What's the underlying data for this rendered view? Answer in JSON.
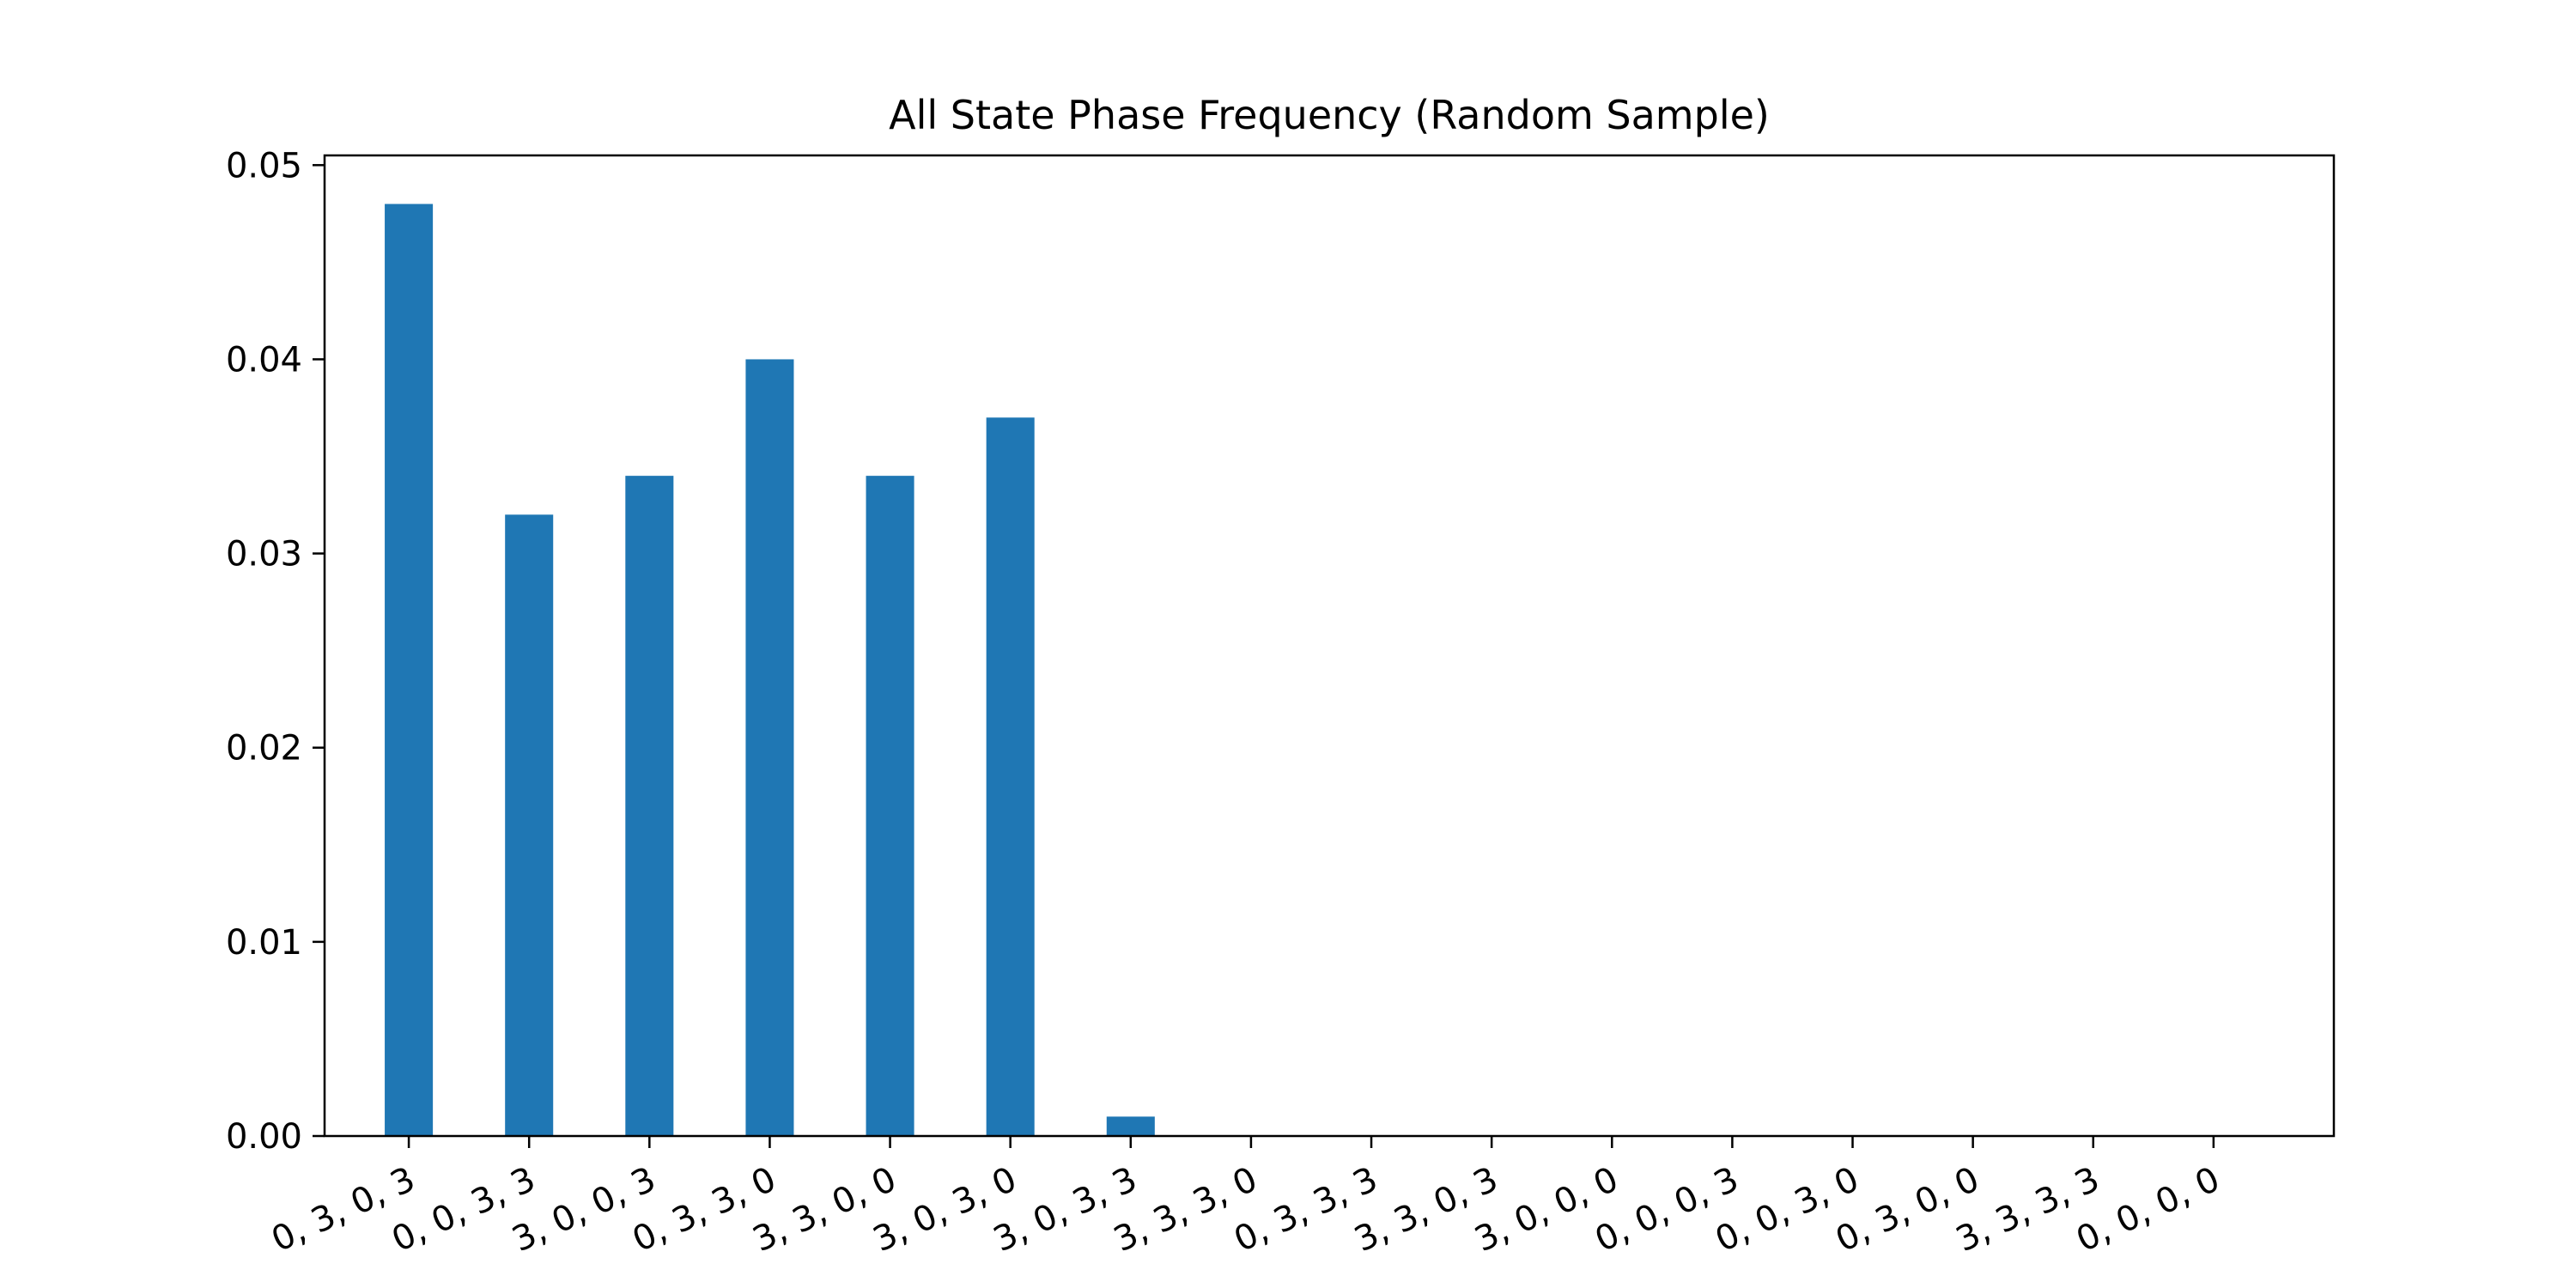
{
  "chart_data": {
    "type": "bar",
    "title": "All State Phase Frequency (Random Sample)",
    "xlabel": "",
    "ylabel": "",
    "categories": [
      "0, 3, 0, 3",
      "0, 0, 3, 3",
      "3, 0, 0, 3",
      "0, 3, 3, 0",
      "3, 3, 0, 0",
      "3, 0, 3, 0",
      "3, 0, 3, 3",
      "3, 3, 3, 0",
      "0, 3, 3, 3",
      "3, 3, 0, 3",
      "3, 0, 0, 0",
      "0, 0, 0, 3",
      "0, 0, 3, 0",
      "0, 3, 0, 0",
      "3, 3, 3, 3",
      "0, 0, 0, 0"
    ],
    "values": [
      0.048,
      0.032,
      0.034,
      0.04,
      0.034,
      0.037,
      0.001,
      0,
      0,
      0,
      0,
      0,
      0,
      0,
      0,
      0
    ],
    "ylim": [
      0,
      0.0505
    ],
    "yticks": [
      "0.00",
      "0.01",
      "0.02",
      "0.03",
      "0.04",
      "0.05"
    ],
    "ytick_values": [
      0,
      0.01,
      0.02,
      0.03,
      0.04,
      0.05
    ],
    "bar_color": "#1f77b4",
    "grid": false,
    "legend": "none"
  }
}
